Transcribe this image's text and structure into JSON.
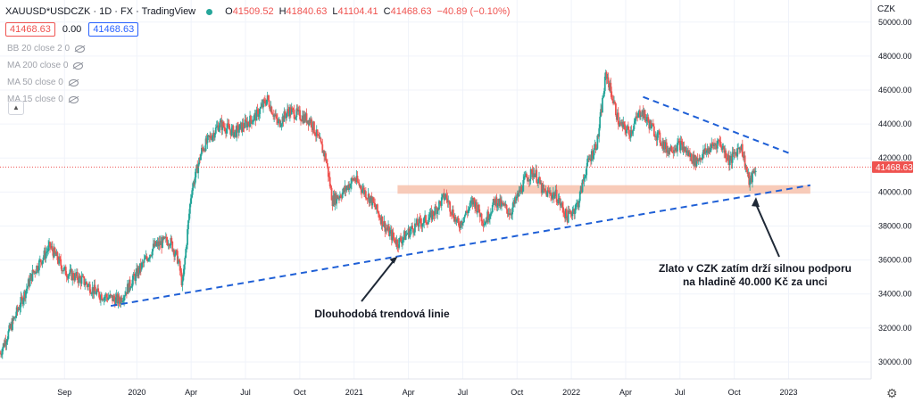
{
  "header": {
    "symbol": "XAUUSD*USDCZK · 1D · FX · TradingView",
    "ohlc": [
      {
        "label": "O",
        "value": "41509.52"
      },
      {
        "label": "H",
        "value": "41840.63"
      },
      {
        "label": "L",
        "value": "41104.41"
      },
      {
        "label": "C",
        "value": "41468.63"
      }
    ],
    "change": "−40.89 (−0.10%)",
    "bid": "41468.63",
    "spread": "0.00",
    "ask": "41468.63"
  },
  "indicators": [
    {
      "label": "BB 20 close 2 0",
      "icon": "eye-off-icon"
    },
    {
      "label": "MA 200 close 0",
      "icon": "eye-off-icon"
    },
    {
      "label": "MA 50 close 0",
      "icon": "eye-off-icon"
    },
    {
      "label": "MA 15 close 0",
      "icon": "eye-off-icon"
    }
  ],
  "colors": {
    "up": "#26a69a",
    "down": "#ef5350",
    "trend": "#1e5fd6",
    "zone": "#f7c2ad"
  },
  "chart_data": {
    "type": "candlestick",
    "currency": "CZK",
    "last_price": "41468.63",
    "y_ticks": [
      30000,
      32000,
      34000,
      36000,
      38000,
      40000,
      42000,
      44000,
      46000,
      48000,
      50000
    ],
    "y_range": [
      29000,
      51300
    ],
    "x_ticks": [
      {
        "label": "Sep",
        "x": 2019.667
      },
      {
        "label": "2020",
        "x": 2020.0
      },
      {
        "label": "Apr",
        "x": 2020.25
      },
      {
        "label": "Jul",
        "x": 2020.5
      },
      {
        "label": "Oct",
        "x": 2020.75
      },
      {
        "label": "2021",
        "x": 2021.0
      },
      {
        "label": "Apr",
        "x": 2021.25
      },
      {
        "label": "Jul",
        "x": 2021.5
      },
      {
        "label": "Oct",
        "x": 2021.75
      },
      {
        "label": "2022",
        "x": 2022.0
      },
      {
        "label": "Apr",
        "x": 2022.25
      },
      {
        "label": "Jul",
        "x": 2022.5
      },
      {
        "label": "Oct",
        "x": 2022.75
      },
      {
        "label": "2023",
        "x": 2023.0
      }
    ],
    "x_range": [
      2019.37,
      2023.38
    ],
    "price_path": [
      [
        2019.37,
        30500
      ],
      [
        2019.45,
        33000
      ],
      [
        2019.52,
        35200
      ],
      [
        2019.6,
        36800
      ],
      [
        2019.67,
        35300
      ],
      [
        2019.75,
        34800
      ],
      [
        2019.82,
        34000
      ],
      [
        2019.92,
        33600
      ],
      [
        2020.0,
        35200
      ],
      [
        2020.08,
        36800
      ],
      [
        2020.15,
        37200
      ],
      [
        2020.19,
        36000
      ],
      [
        2020.21,
        34500
      ],
      [
        2020.25,
        40000
      ],
      [
        2020.3,
        42500
      ],
      [
        2020.38,
        44000
      ],
      [
        2020.45,
        43500
      ],
      [
        2020.55,
        44500
      ],
      [
        2020.6,
        45500
      ],
      [
        2020.65,
        44000
      ],
      [
        2020.7,
        44800
      ],
      [
        2020.8,
        44200
      ],
      [
        2020.87,
        42000
      ],
      [
        2020.9,
        39500
      ],
      [
        2020.95,
        40000
      ],
      [
        2021.0,
        40800
      ],
      [
        2021.08,
        39500
      ],
      [
        2021.15,
        37800
      ],
      [
        2021.2,
        37000
      ],
      [
        2021.28,
        38000
      ],
      [
        2021.35,
        38500
      ],
      [
        2021.42,
        39800
      ],
      [
        2021.48,
        38000
      ],
      [
        2021.55,
        39500
      ],
      [
        2021.6,
        38200
      ],
      [
        2021.65,
        39500
      ],
      [
        2021.72,
        38800
      ],
      [
        2021.79,
        40800
      ],
      [
        2021.83,
        41200
      ],
      [
        2021.87,
        40000
      ],
      [
        2021.93,
        39800
      ],
      [
        2021.98,
        38500
      ],
      [
        2022.03,
        39300
      ],
      [
        2022.07,
        41500
      ],
      [
        2022.12,
        43000
      ],
      [
        2022.16,
        47000
      ],
      [
        2022.18,
        46000
      ],
      [
        2022.22,
        44000
      ],
      [
        2022.27,
        43500
      ],
      [
        2022.32,
        44800
      ],
      [
        2022.37,
        43800
      ],
      [
        2022.44,
        42500
      ],
      [
        2022.5,
        42800
      ],
      [
        2022.57,
        41800
      ],
      [
        2022.63,
        42500
      ],
      [
        2022.68,
        43000
      ],
      [
        2022.73,
        41800
      ],
      [
        2022.78,
        42800
      ],
      [
        2022.82,
        40500
      ],
      [
        2022.85,
        41468.63
      ]
    ],
    "support_zone": {
      "from": 2021.2,
      "to": 2023.1,
      "low": 39900,
      "high": 40400
    },
    "trendlines": [
      {
        "from": [
          2019.88,
          33300
        ],
        "to": [
          2023.1,
          40400
        ],
        "style": "dashed"
      },
      {
        "from": [
          2022.33,
          45600
        ],
        "to": [
          2023.0,
          42300
        ],
        "style": "dashed"
      }
    ],
    "annotations": [
      {
        "text": "Dlouhodobá trendová linie",
        "arrow_to": [
          2021.2,
          36200
        ]
      },
      {
        "text": "Zlato v CZK zatím drží silnou podporu",
        "text2": "na hladině 40.000 Kč za unci",
        "arrow_to": [
          2022.85,
          39700
        ]
      }
    ]
  }
}
